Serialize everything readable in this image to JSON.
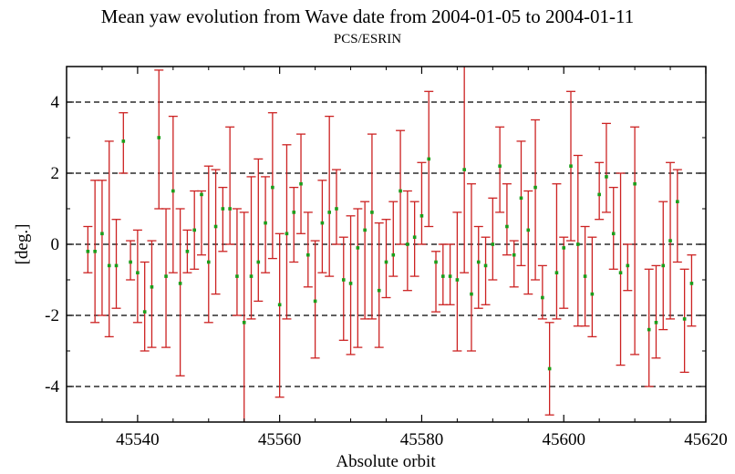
{
  "chart_data": {
    "type": "scatter",
    "title": "Mean yaw evolution from Wave date from 2004-01-05 to 2004-01-11",
    "subtitle": "PCS/ESRIN",
    "xlabel": "Absolute orbit",
    "ylabel": "[deg.]",
    "xlim": [
      45530,
      45620
    ],
    "ylim": [
      -5,
      5
    ],
    "xticks": [
      45540,
      45560,
      45580,
      45600,
      45620
    ],
    "yticks": [
      -4,
      -2,
      0,
      2,
      4
    ],
    "reference_lines_y": [
      -4,
      -2,
      0,
      2,
      4
    ],
    "colors": {
      "error_bar": "#cc2222",
      "marker": "#1a9e1a",
      "reference_line": "#000000"
    },
    "series": [
      {
        "points": [
          {
            "x": 45533,
            "y": -0.2,
            "low": -0.8,
            "high": 0.5
          },
          {
            "x": 45534,
            "y": -0.2,
            "low": -2.2,
            "high": 1.8
          },
          {
            "x": 45535,
            "y": 0.3,
            "low": -2.0,
            "high": 1.8
          },
          {
            "x": 45536,
            "y": -0.6,
            "low": -2.6,
            "high": 2.9
          },
          {
            "x": 45537,
            "y": -0.6,
            "low": -1.8,
            "high": 0.7
          },
          {
            "x": 45538,
            "y": 2.9,
            "low": 2.0,
            "high": 3.7
          },
          {
            "x": 45539,
            "y": -0.5,
            "low": -1.0,
            "high": 0.1
          },
          {
            "x": 45540,
            "y": -0.8,
            "low": -2.2,
            "high": 0.4
          },
          {
            "x": 45541,
            "y": -1.9,
            "low": -3.0,
            "high": -0.5
          },
          {
            "x": 45542,
            "y": -1.2,
            "low": -2.9,
            "high": 0.1
          },
          {
            "x": 45543,
            "y": 3.0,
            "low": 1.0,
            "high": 4.9
          },
          {
            "x": 45544,
            "y": -0.9,
            "low": -2.9,
            "high": 1.0
          },
          {
            "x": 45545,
            "y": 1.5,
            "low": -0.8,
            "high": 3.6
          },
          {
            "x": 45546,
            "y": -1.1,
            "low": -3.7,
            "high": 1.0
          },
          {
            "x": 45547,
            "y": -0.2,
            "low": -0.8,
            "high": 0.4
          },
          {
            "x": 45548,
            "y": 0.4,
            "low": -0.7,
            "high": 1.5
          },
          {
            "x": 45549,
            "y": 1.4,
            "low": -0.3,
            "high": 1.5
          },
          {
            "x": 45550,
            "y": -0.5,
            "low": -2.2,
            "high": 2.2
          },
          {
            "x": 45551,
            "y": 0.5,
            "low": -1.4,
            "high": 2.1
          },
          {
            "x": 45552,
            "y": 1.0,
            "low": -0.2,
            "high": 1.6
          },
          {
            "x": 45553,
            "y": 1.0,
            "low": 0.0,
            "high": 3.3
          },
          {
            "x": 45554,
            "y": -0.9,
            "low": -2.0,
            "high": 1.0
          },
          {
            "x": 45555,
            "y": -2.2,
            "low": -5.0,
            "high": 0.9
          },
          {
            "x": 45556,
            "y": -0.9,
            "low": -2.1,
            "high": 1.9
          },
          {
            "x": 45557,
            "y": -0.5,
            "low": -1.6,
            "high": 2.4
          },
          {
            "x": 45558,
            "y": 0.6,
            "low": -0.8,
            "high": 1.9
          },
          {
            "x": 45559,
            "y": 1.6,
            "low": -0.4,
            "high": 3.7
          },
          {
            "x": 45560,
            "y": -1.7,
            "low": -4.3,
            "high": 0.3
          },
          {
            "x": 45561,
            "y": 0.3,
            "low": -2.1,
            "high": 2.8
          },
          {
            "x": 45562,
            "y": 0.9,
            "low": -0.5,
            "high": 1.6
          },
          {
            "x": 45563,
            "y": 1.7,
            "low": 0.3,
            "high": 3.1
          },
          {
            "x": 45564,
            "y": -0.3,
            "low": -1.2,
            "high": 0.9
          },
          {
            "x": 45565,
            "y": -1.6,
            "low": -3.2,
            "high": 0.1
          },
          {
            "x": 45566,
            "y": 0.6,
            "low": -0.8,
            "high": 1.8
          },
          {
            "x": 45567,
            "y": 0.9,
            "low": -0.9,
            "high": 3.6
          },
          {
            "x": 45568,
            "y": 1.0,
            "low": 0.0,
            "high": 2.1
          },
          {
            "x": 45569,
            "y": -1.0,
            "low": -2.7,
            "high": 0.2
          },
          {
            "x": 45570,
            "y": -1.1,
            "low": -3.1,
            "high": 0.8
          },
          {
            "x": 45571,
            "y": -0.1,
            "low": -2.9,
            "high": 1.0
          },
          {
            "x": 45572,
            "y": 0.4,
            "low": -2.1,
            "high": 1.2
          },
          {
            "x": 45573,
            "y": 0.9,
            "low": -2.1,
            "high": 3.1
          },
          {
            "x": 45574,
            "y": -1.3,
            "low": -2.9,
            "high": 0.6
          },
          {
            "x": 45575,
            "y": -0.5,
            "low": -1.5,
            "high": 0.7
          },
          {
            "x": 45576,
            "y": -0.3,
            "low": -0.9,
            "high": 1.2
          },
          {
            "x": 45577,
            "y": 1.5,
            "low": 0.0,
            "high": 3.2
          },
          {
            "x": 45578,
            "y": 0.0,
            "low": -1.3,
            "high": 1.5
          },
          {
            "x": 45579,
            "y": 0.2,
            "low": -0.9,
            "high": 1.2
          },
          {
            "x": 45580,
            "y": 0.8,
            "low": 0.0,
            "high": 2.3
          },
          {
            "x": 45581,
            "y": 2.4,
            "low": 0.5,
            "high": 4.3
          },
          {
            "x": 45582,
            "y": -0.5,
            "low": -1.9,
            "high": -0.2
          },
          {
            "x": 45583,
            "y": -0.9,
            "low": -1.7,
            "high": 0.0
          },
          {
            "x": 45584,
            "y": -0.9,
            "low": -1.7,
            "high": 0.0
          },
          {
            "x": 45585,
            "y": -1.0,
            "low": -3.0,
            "high": 0.9
          },
          {
            "x": 45586,
            "y": 2.1,
            "low": -0.8,
            "high": 5.0
          },
          {
            "x": 45587,
            "y": -1.4,
            "low": -3.0,
            "high": 1.7
          },
          {
            "x": 45588,
            "y": -0.5,
            "low": -1.8,
            "high": 0.5
          },
          {
            "x": 45589,
            "y": -0.6,
            "low": -1.7,
            "high": 0.2
          },
          {
            "x": 45590,
            "y": 0.0,
            "low": -1.0,
            "high": 1.3
          },
          {
            "x": 45591,
            "y": 2.2,
            "low": 0.9,
            "high": 3.3
          },
          {
            "x": 45592,
            "y": 0.5,
            "low": -0.3,
            "high": 1.7
          },
          {
            "x": 45593,
            "y": -0.3,
            "low": -1.2,
            "high": 0.1
          },
          {
            "x": 45594,
            "y": 1.3,
            "low": -0.6,
            "high": 2.9
          },
          {
            "x": 45595,
            "y": 0.4,
            "low": -1.4,
            "high": 1.5
          },
          {
            "x": 45596,
            "y": 1.6,
            "low": -1.0,
            "high": 3.5
          },
          {
            "x": 45597,
            "y": -1.5,
            "low": -2.1,
            "high": -0.6
          },
          {
            "x": 45598,
            "y": -3.5,
            "low": -4.8,
            "high": -2.2
          },
          {
            "x": 45599,
            "y": -0.8,
            "low": -2.1,
            "high": 1.7
          },
          {
            "x": 45600,
            "y": -0.1,
            "low": -1.8,
            "high": 0.2
          },
          {
            "x": 45601,
            "y": 2.2,
            "low": 0.1,
            "high": 4.3
          },
          {
            "x": 45602,
            "y": 0.0,
            "low": -2.3,
            "high": 2.5
          },
          {
            "x": 45603,
            "y": -0.9,
            "low": -2.3,
            "high": 0.5
          },
          {
            "x": 45604,
            "y": -1.4,
            "low": -2.6,
            "high": 0.2
          },
          {
            "x": 45605,
            "y": 1.4,
            "low": 0.7,
            "high": 2.3
          },
          {
            "x": 45606,
            "y": 1.9,
            "low": 0.9,
            "high": 3.4
          },
          {
            "x": 45607,
            "y": 0.3,
            "low": -0.7,
            "high": 1.6
          },
          {
            "x": 45608,
            "y": -0.8,
            "low": -3.4,
            "high": 2.0
          },
          {
            "x": 45609,
            "y": -0.6,
            "low": -1.3,
            "high": 0.0
          },
          {
            "x": 45610,
            "y": 1.7,
            "low": -3.1,
            "high": 3.3
          },
          {
            "x": 45612,
            "y": -2.4,
            "low": -4.0,
            "high": -0.7
          },
          {
            "x": 45613,
            "y": -2.2,
            "low": -3.2,
            "high": -0.6
          },
          {
            "x": 45614,
            "y": -0.6,
            "low": -2.4,
            "high": 1.2
          },
          {
            "x": 45615,
            "y": 0.1,
            "low": -2.1,
            "high": 2.3
          },
          {
            "x": 45616,
            "y": 1.2,
            "low": -0.5,
            "high": 2.1
          },
          {
            "x": 45617,
            "y": -2.1,
            "low": -3.6,
            "high": -0.7
          },
          {
            "x": 45618,
            "y": -1.1,
            "low": -2.3,
            "high": -0.3
          }
        ]
      }
    ]
  }
}
